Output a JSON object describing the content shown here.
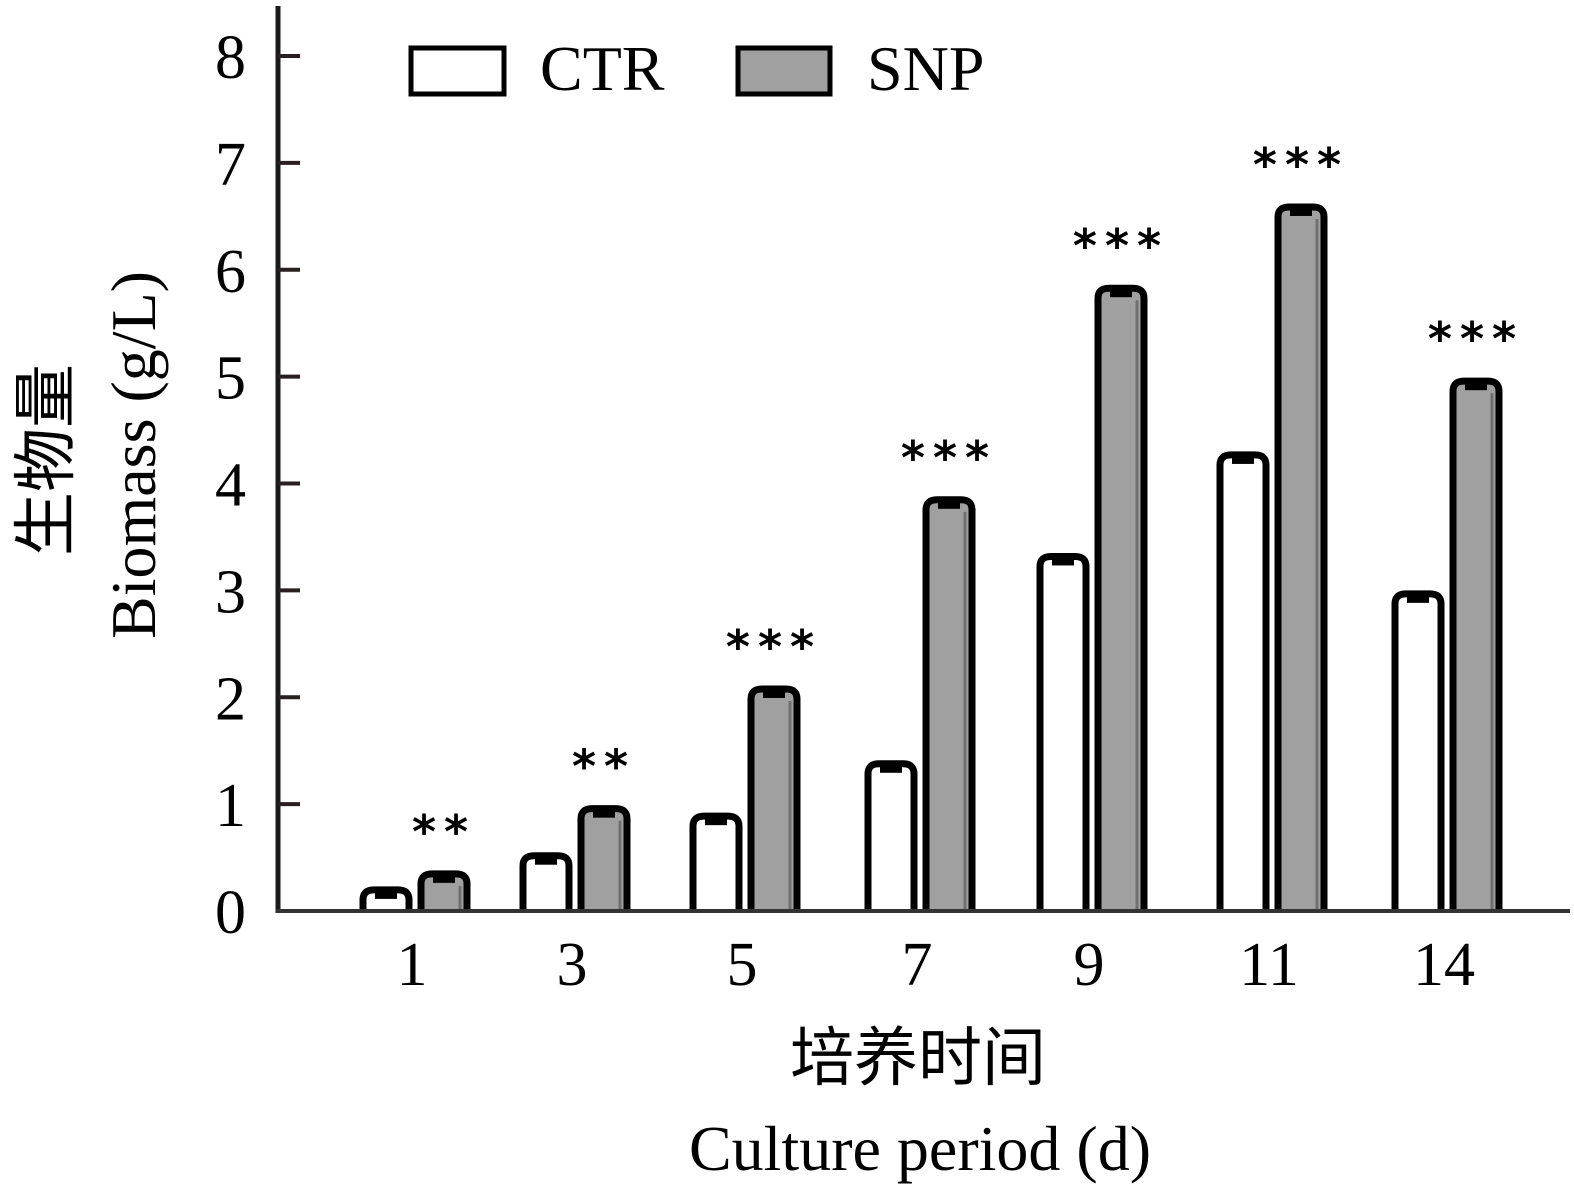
{
  "chart_data": {
    "type": "bar",
    "title": "",
    "xlabel": [
      "培养时间",
      "Culture period (d)"
    ],
    "ylabel": [
      "生物量",
      "Biomass (g/L)"
    ],
    "categories": [
      "1",
      "3",
      "5",
      "7",
      "9",
      "11",
      "14"
    ],
    "series": [
      {
        "name": "CTR",
        "color": "#ffffff",
        "values": [
          0.16,
          0.48,
          0.85,
          1.34,
          3.28,
          4.23,
          2.93
        ]
      },
      {
        "name": "SNP",
        "color": "#a0a0a0",
        "values": [
          0.31,
          0.92,
          2.04,
          3.81,
          5.79,
          6.55,
          4.92
        ]
      }
    ],
    "significance": [
      "**",
      "**",
      "***",
      "***",
      "***",
      "***",
      "***"
    ],
    "ylim": [
      0,
      8
    ],
    "yticks": [
      0,
      1,
      2,
      3,
      4,
      5,
      6,
      7,
      8
    ],
    "grid": false,
    "legend": "top-left",
    "error_bars": true
  }
}
